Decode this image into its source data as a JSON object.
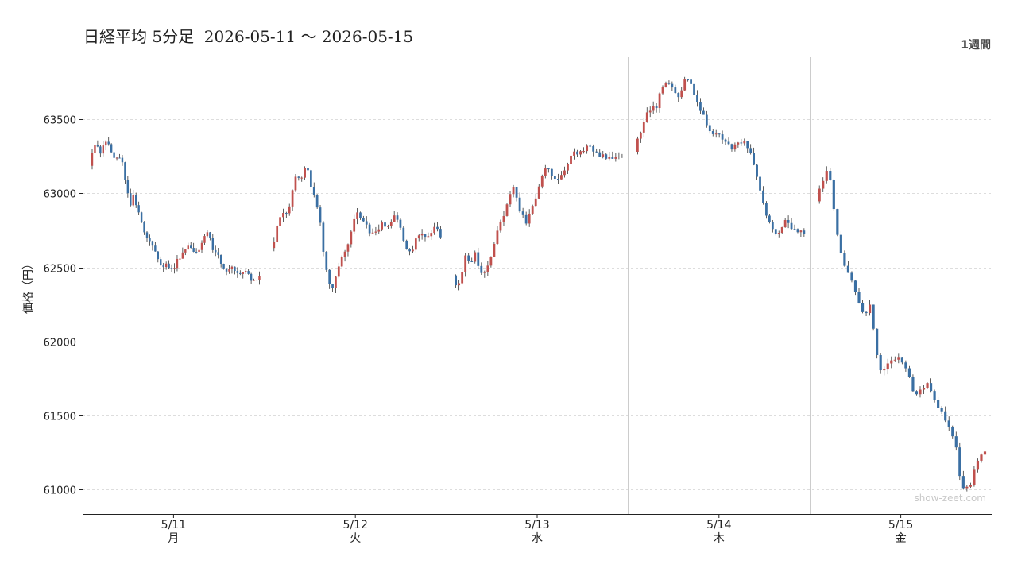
{
  "header": {
    "title": "日経平均 5分足  2026-05-11 〜 2026-05-15",
    "period_label": "1週間"
  },
  "watermark": "show-zeet.com",
  "colors": {
    "up": "#c0504d",
    "down": "#3a6fa3",
    "wick": "#333333",
    "grid": "#dddddd",
    "separator": "#cccccc"
  },
  "chart_data": {
    "type": "candlestick",
    "ylabel": "価格（円）",
    "ylim": [
      60830,
      63920
    ],
    "yticks": [
      61000,
      61500,
      62000,
      62500,
      63000,
      63500
    ],
    "grid": "horizontal-dashed",
    "days": [
      {
        "date": "5/11",
        "weekday": "月",
        "path": [
          63200,
          63300,
          63320,
          63280,
          63370,
          63330,
          63260,
          63220,
          63240,
          63200,
          63050,
          62900,
          63010,
          62880,
          62820,
          62720,
          62680,
          62640,
          62580,
          62530,
          62510,
          62550,
          62470,
          62490,
          62560,
          62600,
          62620,
          62640,
          62610,
          62600,
          62620,
          62700,
          62740,
          62650,
          62600,
          62560,
          62510,
          62480,
          62490,
          62500,
          62480,
          62470,
          62460,
          62450,
          62420,
          62400,
          62430
        ]
      },
      {
        "date": "5/12",
        "weekday": "火",
        "path": [
          62620,
          62700,
          62830,
          62880,
          62850,
          63000,
          63120,
          63080,
          63180,
          63160,
          63000,
          62950,
          62780,
          62550,
          62400,
          62370,
          62480,
          62560,
          62620,
          62700,
          62820,
          62860,
          62850,
          62780,
          62720,
          62740,
          62760,
          62790,
          62760,
          62800,
          62850,
          62790,
          62700,
          62600,
          62620,
          62680,
          62740,
          62700,
          62720,
          62750,
          62760,
          62720
        ]
      },
      {
        "date": "5/13",
        "weekday": "水",
        "path": [
          62440,
          62380,
          62450,
          62600,
          62520,
          62600,
          62520,
          62460,
          62520,
          62600,
          62700,
          62800,
          62880,
          62950,
          63060,
          62920,
          62850,
          62800,
          62880,
          62950,
          63050,
          63150,
          63170,
          63120,
          63100,
          63130,
          63180,
          63250,
          63270,
          63260,
          63280,
          63320,
          63300,
          63270,
          63250,
          63260,
          63230,
          63220,
          63240,
          63230
        ]
      },
      {
        "date": "5/14",
        "weekday": "木",
        "path": [
          63280,
          63380,
          63480,
          63560,
          63580,
          63560,
          63680,
          63760,
          63730,
          63700,
          63650,
          63700,
          63780,
          63760,
          63690,
          63600,
          63550,
          63480,
          63420,
          63400,
          63380,
          63360,
          63330,
          63300,
          63320,
          63350,
          63330,
          63310,
          63230,
          63100,
          63000,
          62850,
          62800,
          62760,
          62720,
          62780,
          62820,
          62780,
          62750,
          62740,
          62740
        ]
      },
      {
        "date": "5/15",
        "weekday": "金",
        "path": [
          62950,
          63050,
          63150,
          63100,
          62800,
          62600,
          62520,
          62450,
          62350,
          62250,
          62150,
          62280,
          62050,
          61850,
          61780,
          61880,
          61900,
          61880,
          61850,
          61780,
          61680,
          61650,
          61700,
          61720,
          61650,
          61580,
          61520,
          61460,
          61400,
          61300,
          61050,
          61000,
          61050,
          61150,
          61250,
          61260
        ]
      }
    ]
  }
}
